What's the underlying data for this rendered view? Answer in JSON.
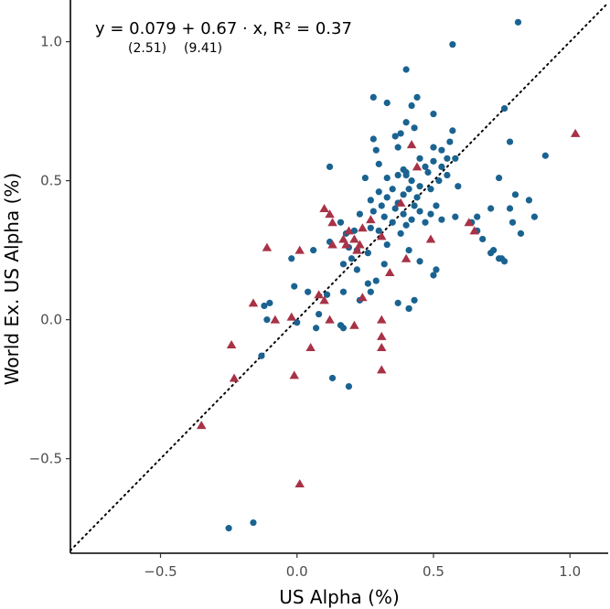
{
  "chart_data": {
    "type": "scatter",
    "xlabel": "US Alpha (%)",
    "ylabel": "World Ex. US Alpha (%)",
    "xlim": [
      -0.83,
      1.14
    ],
    "ylim": [
      -0.84,
      1.15
    ],
    "x_ticks": [
      -0.5,
      0.0,
      0.5,
      1.0
    ],
    "x_tick_labels": [
      "−0.5",
      "0.0",
      "0.5",
      "1.0"
    ],
    "y_ticks": [
      -0.5,
      0.0,
      0.5,
      1.0
    ],
    "y_tick_labels": [
      "−0.5",
      "0.0",
      "0.5",
      "1.0"
    ],
    "grid": false,
    "reference_line": {
      "style": "dotted",
      "slope": 1,
      "intercept": 0
    },
    "equation": {
      "text": "y = 0.079 + 0.67 · x,  R² = 0.37",
      "intercept_tstat": "(2.51)",
      "slope_tstat": "(9.41)"
    },
    "series": [
      {
        "marker": "circle",
        "color": "#1a6391",
        "points": [
          [
            0.81,
            1.07
          ],
          [
            0.57,
            0.99
          ],
          [
            0.4,
            0.9
          ],
          [
            0.33,
            0.78
          ],
          [
            0.28,
            0.8
          ],
          [
            0.44,
            0.8
          ],
          [
            0.5,
            0.74
          ],
          [
            0.42,
            0.77
          ],
          [
            0.76,
            0.76
          ],
          [
            0.4,
            0.71
          ],
          [
            0.43,
            0.69
          ],
          [
            0.57,
            0.68
          ],
          [
            0.36,
            0.66
          ],
          [
            0.38,
            0.67
          ],
          [
            0.28,
            0.65
          ],
          [
            0.5,
            0.62
          ],
          [
            0.56,
            0.64
          ],
          [
            0.78,
            0.64
          ],
          [
            0.37,
            0.62
          ],
          [
            0.29,
            0.61
          ],
          [
            0.53,
            0.61
          ],
          [
            0.55,
            0.58
          ],
          [
            0.91,
            0.59
          ],
          [
            0.45,
            0.58
          ],
          [
            0.5,
            0.57
          ],
          [
            0.58,
            0.58
          ],
          [
            0.47,
            0.55
          ],
          [
            0.3,
            0.56
          ],
          [
            0.12,
            0.55
          ],
          [
            0.39,
            0.54
          ],
          [
            0.53,
            0.55
          ],
          [
            0.48,
            0.53
          ],
          [
            0.4,
            0.53
          ],
          [
            0.37,
            0.52
          ],
          [
            0.55,
            0.52
          ],
          [
            0.25,
            0.51
          ],
          [
            0.33,
            0.51
          ],
          [
            0.42,
            0.5
          ],
          [
            0.52,
            0.5
          ],
          [
            0.45,
            0.48
          ],
          [
            0.35,
            0.47
          ],
          [
            0.41,
            0.47
          ],
          [
            0.74,
            0.51
          ],
          [
            0.49,
            0.47
          ],
          [
            0.3,
            0.46
          ],
          [
            0.39,
            0.45
          ],
          [
            0.44,
            0.44
          ],
          [
            0.33,
            0.44
          ],
          [
            0.27,
            0.43
          ],
          [
            0.37,
            0.42
          ],
          [
            0.31,
            0.41
          ],
          [
            0.51,
            0.41
          ],
          [
            0.59,
            0.48
          ],
          [
            0.8,
            0.45
          ],
          [
            0.85,
            0.43
          ],
          [
            0.43,
            0.41
          ],
          [
            0.28,
            0.39
          ],
          [
            0.36,
            0.4
          ],
          [
            0.45,
            0.39
          ],
          [
            0.49,
            0.38
          ],
          [
            0.71,
            0.4
          ],
          [
            0.39,
            0.38
          ],
          [
            0.23,
            0.38
          ],
          [
            0.32,
            0.37
          ],
          [
            0.42,
            0.36
          ],
          [
            0.47,
            0.35
          ],
          [
            0.58,
            0.37
          ],
          [
            0.66,
            0.37
          ],
          [
            0.78,
            0.4
          ],
          [
            0.87,
            0.37
          ],
          [
            0.16,
            0.35
          ],
          [
            0.35,
            0.35
          ],
          [
            0.53,
            0.36
          ],
          [
            0.64,
            0.35
          ],
          [
            0.79,
            0.35
          ],
          [
            0.21,
            0.32
          ],
          [
            0.4,
            0.34
          ],
          [
            0.27,
            0.33
          ],
          [
            0.3,
            0.32
          ],
          [
            0.66,
            0.32
          ],
          [
            0.82,
            0.31
          ],
          [
            0.18,
            0.31
          ],
          [
            0.38,
            0.31
          ],
          [
            0.68,
            0.29
          ],
          [
            0.12,
            0.28
          ],
          [
            0.33,
            0.27
          ],
          [
            0.19,
            0.26
          ],
          [
            0.72,
            0.25
          ],
          [
            0.06,
            0.25
          ],
          [
            0.22,
            0.25
          ],
          [
            0.41,
            0.25
          ],
          [
            0.71,
            0.24
          ],
          [
            0.26,
            0.24
          ],
          [
            0.74,
            0.22
          ],
          [
            0.75,
            0.22
          ],
          [
            0.2,
            0.22
          ],
          [
            0.76,
            0.21
          ],
          [
            0.45,
            0.21
          ],
          [
            0.17,
            0.2
          ],
          [
            0.32,
            0.2
          ],
          [
            0.22,
            0.18
          ],
          [
            0.51,
            0.18
          ],
          [
            0.5,
            0.16
          ],
          [
            0.26,
            0.13
          ],
          [
            0.29,
            0.14
          ],
          [
            0.17,
            0.1
          ],
          [
            0.04,
            0.1
          ],
          [
            0.27,
            0.1
          ],
          [
            0.11,
            0.09
          ],
          [
            0.23,
            0.07
          ],
          [
            0.43,
            0.07
          ],
          [
            0.37,
            0.06
          ],
          [
            -0.1,
            0.06
          ],
          [
            -0.12,
            0.05
          ],
          [
            -0.11,
            0.0
          ],
          [
            -0.01,
            0.12
          ],
          [
            0.41,
            0.04
          ],
          [
            0.41,
            0.04
          ],
          [
            0.08,
            0.02
          ],
          [
            0.0,
            -0.01
          ],
          [
            0.16,
            -0.02
          ],
          [
            0.17,
            -0.03
          ],
          [
            0.07,
            -0.03
          ],
          [
            -0.13,
            -0.13
          ],
          [
            0.13,
            -0.21
          ],
          [
            0.19,
            -0.24
          ],
          [
            -0.25,
            -0.75
          ],
          [
            -0.16,
            -0.73
          ],
          [
            -0.02,
            0.22
          ],
          [
            0.4,
            0.52
          ]
        ]
      },
      {
        "marker": "triangle",
        "color": "#a83246",
        "points": [
          [
            1.02,
            0.67
          ],
          [
            0.42,
            0.63
          ],
          [
            0.44,
            0.55
          ],
          [
            0.38,
            0.42
          ],
          [
            0.1,
            0.4
          ],
          [
            0.12,
            0.38
          ],
          [
            0.13,
            0.35
          ],
          [
            0.27,
            0.36
          ],
          [
            0.63,
            0.35
          ],
          [
            0.24,
            0.33
          ],
          [
            0.19,
            0.32
          ],
          [
            0.65,
            0.32
          ],
          [
            0.17,
            0.29
          ],
          [
            0.21,
            0.29
          ],
          [
            0.49,
            0.29
          ],
          [
            0.18,
            0.27
          ],
          [
            0.13,
            0.27
          ],
          [
            0.23,
            0.27
          ],
          [
            0.01,
            0.25
          ],
          [
            0.22,
            0.25
          ],
          [
            -0.11,
            0.26
          ],
          [
            0.31,
            0.3
          ],
          [
            0.4,
            0.22
          ],
          [
            0.34,
            0.17
          ],
          [
            0.08,
            0.09
          ],
          [
            0.24,
            0.08
          ],
          [
            0.1,
            0.07
          ],
          [
            -0.16,
            0.06
          ],
          [
            -0.08,
            0.0
          ],
          [
            -0.02,
            0.01
          ],
          [
            0.12,
            0.0
          ],
          [
            0.31,
            -0.0
          ],
          [
            0.21,
            -0.02
          ],
          [
            0.05,
            -0.1
          ],
          [
            0.31,
            -0.06
          ],
          [
            0.31,
            -0.1
          ],
          [
            0.31,
            -0.18
          ],
          [
            -0.24,
            -0.09
          ],
          [
            -0.23,
            -0.21
          ],
          [
            -0.01,
            -0.2
          ],
          [
            -0.35,
            -0.38
          ],
          [
            0.01,
            -0.59
          ]
        ]
      }
    ]
  }
}
